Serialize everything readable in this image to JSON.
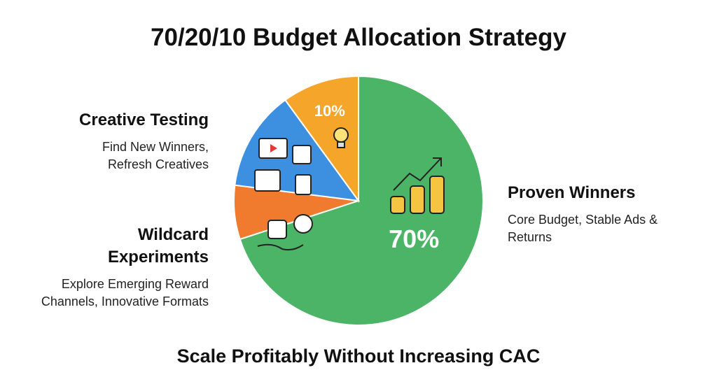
{
  "chart_data": {
    "type": "pie",
    "title": "70/20/10 Budget Allocation Strategy",
    "subtitle": "Scale Profitably Without Increasing CAC",
    "categories": [
      "Proven Winners",
      "Wildcard Experiments",
      "Creative Testing",
      null
    ],
    "descriptions": [
      "Core Budget, Stable Ads & Returns",
      "Explore Emerging Reward Channels, Innovative Formats",
      "Find New Winners, Refresh Creatives",
      null
    ],
    "values": [
      70,
      7,
      13,
      10
    ],
    "value_labels": [
      "70%",
      null,
      null,
      "10%"
    ],
    "colors": [
      "#4cb466",
      "#f07a2e",
      "#3d8fe0",
      "#f5a52a"
    ]
  }
}
